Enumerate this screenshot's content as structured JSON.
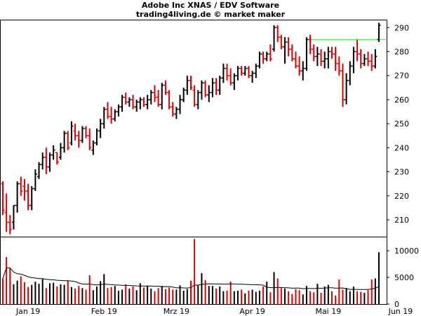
{
  "header": {
    "title": "Adobe Inc XNAS / EDV Software",
    "subtitle": "trading4living.de © market maker"
  },
  "colors": {
    "up": "#000000",
    "down": "#e00000",
    "resistance": "#66dd66",
    "ma": "#000000"
  },
  "chart_data": [
    {
      "type": "ohlc",
      "title": "Adobe Inc XNAS / EDV Software",
      "ylim": [
        203,
        293
      ],
      "y_ticks": [
        210,
        220,
        230,
        240,
        250,
        260,
        270,
        280,
        290
      ],
      "x_ticks": [
        "Jan 19",
        "Feb 19",
        "Mrz 19",
        "Apr 19",
        "Mai 19",
        "Jun 19"
      ],
      "resistance_line": 285,
      "grid": false,
      "ohlc": [
        [
          225,
          226,
          212,
          214
        ],
        [
          213,
          221,
          205,
          209
        ],
        [
          209,
          212,
          204,
          206
        ],
        [
          209,
          216,
          206,
          216
        ],
        [
          216,
          226,
          213,
          225
        ],
        [
          225,
          228,
          220,
          222
        ],
        [
          224,
          227,
          218,
          222
        ],
        [
          222,
          225,
          214,
          216
        ],
        [
          216,
          224,
          214,
          223
        ],
        [
          223,
          231,
          222,
          229
        ],
        [
          228,
          234,
          227,
          233
        ],
        [
          233,
          238,
          231,
          236
        ],
        [
          236,
          240,
          229,
          232
        ],
        [
          232,
          238,
          230,
          237
        ],
        [
          237,
          241,
          235,
          239
        ],
        [
          238,
          238,
          233,
          234
        ],
        [
          236,
          242,
          235,
          240
        ],
        [
          240,
          247,
          238,
          246
        ],
        [
          246,
          247,
          239,
          240
        ],
        [
          242,
          251,
          241,
          249
        ],
        [
          247,
          250,
          243,
          245
        ],
        [
          245,
          247,
          240,
          243
        ],
        [
          243,
          249,
          242,
          248
        ],
        [
          248,
          249,
          244,
          245
        ],
        [
          245,
          248,
          239,
          240
        ],
        [
          239,
          243,
          237,
          242
        ],
        [
          242,
          248,
          241,
          247
        ],
        [
          247,
          252,
          244,
          250
        ],
        [
          250,
          257,
          248,
          256
        ],
        [
          256,
          259,
          252,
          253
        ],
        [
          253,
          257,
          250,
          252
        ],
        [
          252,
          256,
          251,
          255
        ],
        [
          255,
          258,
          253,
          257
        ],
        [
          257,
          262,
          255,
          261
        ],
        [
          261,
          263,
          258,
          259
        ],
        [
          259,
          261,
          257,
          260
        ],
        [
          260,
          262,
          256,
          257
        ],
        [
          257,
          260,
          255,
          259
        ],
        [
          259,
          261,
          256,
          260
        ],
        [
          260,
          261,
          257,
          258
        ],
        [
          258,
          262,
          256,
          260
        ],
        [
          260,
          264,
          258,
          263
        ],
        [
          263,
          266,
          259,
          261
        ],
        [
          261,
          264,
          257,
          258
        ],
        [
          258,
          267,
          256,
          266
        ],
        [
          266,
          268,
          262,
          263
        ],
        [
          263,
          264,
          256,
          257
        ],
        [
          257,
          259,
          253,
          254
        ],
        [
          254,
          257,
          252,
          256
        ],
        [
          256,
          262,
          254,
          260
        ],
        [
          260,
          265,
          259,
          264
        ],
        [
          264,
          270,
          262,
          268
        ],
        [
          268,
          270,
          264,
          265
        ],
        [
          264,
          266,
          257,
          258
        ],
        [
          258,
          264,
          256,
          263
        ],
        [
          263,
          268,
          260,
          267
        ],
        [
          267,
          268,
          261,
          262
        ],
        [
          262,
          266,
          259,
          263
        ],
        [
          263,
          269,
          261,
          267
        ],
        [
          267,
          269,
          262,
          264
        ],
        [
          264,
          270,
          262,
          269
        ],
        [
          269,
          275,
          267,
          273
        ],
        [
          273,
          275,
          268,
          270
        ],
        [
          270,
          273,
          266,
          267
        ],
        [
          267,
          271,
          264,
          270
        ],
        [
          270,
          274,
          268,
          273
        ],
        [
          273,
          274,
          270,
          271
        ],
        [
          271,
          274,
          270,
          273
        ],
        [
          273,
          274,
          269,
          270
        ],
        [
          270,
          272,
          267,
          271
        ],
        [
          271,
          275,
          269,
          274
        ],
        [
          274,
          280,
          273,
          279
        ],
        [
          279,
          280,
          275,
          277
        ],
        [
          277,
          280,
          276,
          279
        ],
        [
          279,
          283,
          276,
          277
        ],
        [
          281,
          291,
          280,
          290
        ],
        [
          290,
          291,
          284,
          286
        ],
        [
          286,
          287,
          281,
          282
        ],
        [
          282,
          286,
          275,
          284
        ],
        [
          284,
          286,
          278,
          281
        ],
        [
          281,
          283,
          276,
          277
        ],
        [
          277,
          280,
          273,
          274
        ],
        [
          274,
          278,
          270,
          272
        ],
        [
          272,
          276,
          268,
          273
        ],
        [
          273,
          286,
          272,
          285
        ],
        [
          285,
          287,
          279,
          281
        ],
        [
          281,
          283,
          276,
          278
        ],
        [
          278,
          282,
          274,
          279
        ],
        [
          279,
          281,
          274,
          276
        ],
        [
          276,
          280,
          273,
          277
        ],
        [
          277,
          282,
          273,
          280
        ],
        [
          280,
          282,
          277,
          279
        ],
        [
          279,
          282,
          272,
          275
        ],
        [
          275,
          278,
          270,
          272
        ],
        [
          272,
          275,
          257,
          260
        ],
        [
          260,
          271,
          258,
          268
        ],
        [
          268,
          276,
          266,
          274
        ],
        [
          274,
          282,
          271,
          280
        ],
        [
          280,
          285,
          276,
          279
        ],
        [
          279,
          281,
          273,
          275
        ],
        [
          275,
          279,
          274,
          277
        ],
        [
          277,
          280,
          274,
          276
        ],
        [
          276,
          279,
          272,
          274
        ],
        [
          274,
          281,
          273,
          278
        ],
        [
          285,
          292,
          284,
          291
        ]
      ]
    },
    {
      "type": "bar",
      "title": "",
      "ylim": [
        0,
        12500
      ],
      "y_ticks": [
        0,
        5000,
        10000
      ],
      "moving_average": true,
      "values": [
        4800,
        8800,
        6700,
        3700,
        4400,
        5200,
        4100,
        3200,
        3600,
        4200,
        3800,
        4700,
        3000,
        3900,
        4000,
        3300,
        3700,
        3600,
        4400,
        3200,
        2900,
        3400,
        3000,
        2700,
        5400,
        2600,
        3300,
        4300,
        5600,
        3000,
        3200,
        3400,
        2500,
        2700,
        3700,
        2900,
        3300,
        2600,
        3900,
        3100,
        3400,
        2900,
        2400,
        3000,
        3400,
        2800,
        3100,
        2700,
        2700,
        3500,
        2500,
        2800,
        4400,
        12200,
        3500,
        5800,
        4500,
        3400,
        3400,
        2900,
        3300,
        2400,
        2500,
        4200,
        2400,
        2500,
        2700,
        2000,
        2500,
        2700,
        2300,
        2500,
        3300,
        4200,
        2200,
        6000,
        4800,
        3000,
        2900,
        2400,
        1900,
        2800,
        2600,
        1800,
        3400,
        2400,
        2200,
        3800,
        2100,
        3300,
        3600,
        2400,
        1600,
        4600,
        2700,
        3000,
        2400,
        3300,
        2400,
        2300,
        2100,
        2600,
        4600,
        4800,
        9700
      ]
    }
  ]
}
